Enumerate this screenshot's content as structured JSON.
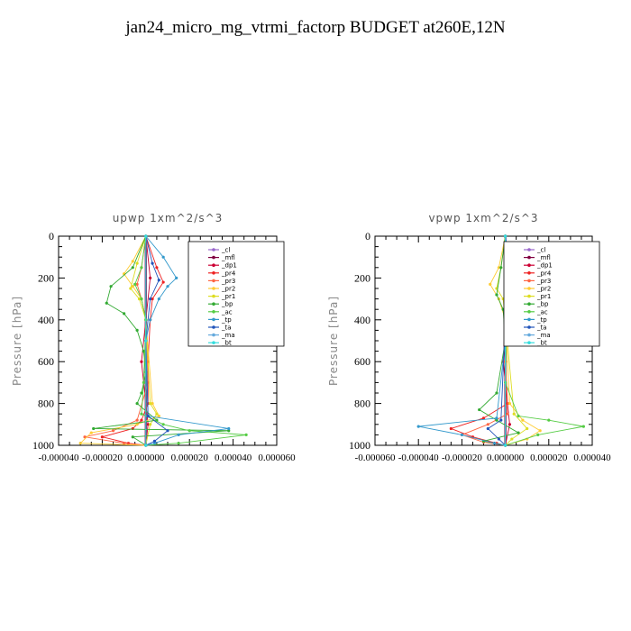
{
  "title": "jan24_micro_mg_vtrmi_factorp  BUDGET at260E,12N",
  "chart_data": [
    {
      "type": "line",
      "title": "upwp   1xm^2/s^3",
      "ylabel": "Pressure [hPa]",
      "xlabel": "",
      "xlim": [
        -4e-05,
        6e-05
      ],
      "ylim": [
        1000,
        0
      ],
      "xticks": [
        "-0.000040",
        "-0.000020",
        "0.000000",
        "0.000020",
        "0.000040",
        "0.000060"
      ],
      "yticks": [
        "0",
        "200",
        "400",
        "600",
        "800",
        "1000"
      ],
      "legend_position": "top-right",
      "series": [
        {
          "name": "_cl",
          "color": "#9966cc",
          "x": [
            0,
            0,
            0
          ],
          "y": [
            0,
            500,
            1000
          ]
        },
        {
          "name": "_mfl",
          "color": "#800040",
          "x": [
            0,
            0,
            0
          ],
          "y": [
            0,
            500,
            1000
          ]
        },
        {
          "name": "_dp1",
          "color": "#cc0033",
          "x": [
            0,
            2e-06,
            -2e-06,
            1e-06,
            0
          ],
          "y": [
            0,
            200,
            600,
            900,
            1000
          ]
        },
        {
          "name": "_pr4",
          "color": "#ee2222",
          "x": [
            0,
            5e-06,
            8e-06,
            3e-06,
            2e-06,
            1e-06,
            1e-06,
            -2e-06,
            -6e-06,
            -2e-05,
            -8e-06,
            0
          ],
          "y": [
            0,
            150,
            220,
            300,
            400,
            600,
            800,
            880,
            920,
            960,
            990,
            1000
          ]
        },
        {
          "name": "_pr3",
          "color": "#ff6644",
          "x": [
            0,
            -2e-06,
            -4e-06,
            -2e-06,
            0,
            1e-06,
            -4e-06,
            -1.5e-05,
            -2.8e-05,
            -1e-05,
            0
          ],
          "y": [
            0,
            150,
            230,
            300,
            400,
            700,
            880,
            930,
            960,
            990,
            1000
          ]
        },
        {
          "name": "_pr2",
          "color": "#ffcc33",
          "x": [
            0,
            -6e-06,
            -1e-05,
            -6e-06,
            -2e-06,
            0,
            3e-06,
            6e-06,
            -4e-06,
            -2.5e-05,
            -3e-05,
            0
          ],
          "y": [
            0,
            120,
            180,
            240,
            300,
            400,
            800,
            860,
            900,
            940,
            990,
            1000
          ]
        },
        {
          "name": "_pr1",
          "color": "#dddd22",
          "x": [
            0,
            -4e-06,
            -7e-06,
            -3e-06,
            0,
            2e-06,
            5e-06,
            2e-06,
            0
          ],
          "y": [
            0,
            130,
            250,
            300,
            400,
            800,
            850,
            900,
            1000
          ]
        },
        {
          "name": "_bp",
          "color": "#33aa33",
          "x": [
            0,
            -6e-06,
            -1.6e-05,
            -1.8e-05,
            -1e-05,
            -4e-06,
            -1e-06,
            0,
            -2e-06,
            -4e-06,
            5e-06,
            -2.4e-05,
            3.8e-05,
            -6e-06,
            0
          ],
          "y": [
            0,
            150,
            240,
            320,
            370,
            450,
            550,
            650,
            750,
            800,
            880,
            920,
            930,
            960,
            1000
          ]
        },
        {
          "name": "_ac",
          "color": "#55cc44",
          "x": [
            0,
            -2e-06,
            -5e-06,
            -2e-06,
            0,
            -1e-06,
            -2e-06,
            8e-06,
            2e-05,
            4.6e-05,
            1.5e-05,
            0
          ],
          "y": [
            0,
            150,
            230,
            300,
            400,
            700,
            850,
            900,
            930,
            950,
            990,
            1000
          ]
        },
        {
          "name": "_tp",
          "color": "#3399cc",
          "x": [
            0,
            8e-06,
            1.4e-05,
            1e-05,
            6e-06,
            2e-06,
            0,
            1e-06,
            3.8e-05,
            1.5e-05,
            4e-06,
            0
          ],
          "y": [
            0,
            100,
            200,
            240,
            300,
            400,
            500,
            860,
            920,
            950,
            990,
            1000
          ]
        },
        {
          "name": "_ta",
          "color": "#2255bb",
          "x": [
            0,
            3e-06,
            6e-06,
            2e-06,
            0,
            1e-06,
            1e-05,
            4e-06,
            0
          ],
          "y": [
            0,
            130,
            210,
            300,
            500,
            860,
            930,
            980,
            1000
          ]
        },
        {
          "name": "_ma",
          "color": "#66aadd",
          "x": [
            0,
            0,
            0
          ],
          "y": [
            0,
            500,
            1000
          ]
        },
        {
          "name": "_bt",
          "color": "#33dddd",
          "x": [
            0,
            0,
            0
          ],
          "y": [
            0,
            500,
            1000
          ]
        }
      ]
    },
    {
      "type": "line",
      "title": "vpwp   1xm^2/s^3",
      "ylabel": "Pressure [hPa]",
      "xlabel": "",
      "xlim": [
        -6e-05,
        4e-05
      ],
      "ylim": [
        1000,
        0
      ],
      "xticks": [
        "-0.000060",
        "-0.000040",
        "-0.000020",
        "0.000000",
        "0.000020",
        "0.000040"
      ],
      "yticks": [
        "0",
        "200",
        "400",
        "600",
        "800",
        "1000"
      ],
      "legend_position": "top-right",
      "series": [
        {
          "name": "_cl",
          "color": "#9966cc",
          "x": [
            0,
            0,
            0
          ],
          "y": [
            0,
            500,
            1000
          ]
        },
        {
          "name": "_mfl",
          "color": "#800040",
          "x": [
            0,
            0,
            0
          ],
          "y": [
            0,
            500,
            1000
          ]
        },
        {
          "name": "_dp1",
          "color": "#cc0033",
          "x": [
            0,
            1e-06,
            -1e-06,
            2e-06,
            0
          ],
          "y": [
            0,
            200,
            600,
            900,
            1000
          ]
        },
        {
          "name": "_pr4",
          "color": "#ee2222",
          "x": [
            0,
            1e-06,
            2e-06,
            1e-06,
            0,
            1e-06,
            -1e-05,
            -2.5e-05,
            -1.5e-05,
            -4e-06,
            0
          ],
          "y": [
            0,
            150,
            250,
            350,
            600,
            800,
            870,
            920,
            960,
            990,
            1000
          ]
        },
        {
          "name": "_pr3",
          "color": "#ff6644",
          "x": [
            0,
            1e-06,
            0,
            1e-06,
            -8e-06,
            -2e-05,
            -1e-05,
            0
          ],
          "y": [
            0,
            200,
            600,
            850,
            900,
            950,
            985,
            1000
          ]
        },
        {
          "name": "_pr2",
          "color": "#ffcc33",
          "x": [
            0,
            -3e-06,
            -7e-06,
            -3e-06,
            0,
            2e-06,
            8e-06,
            1.6e-05,
            1e-05,
            0
          ],
          "y": [
            0,
            150,
            230,
            300,
            400,
            800,
            880,
            930,
            970,
            1000
          ]
        },
        {
          "name": "_pr1",
          "color": "#dddd22",
          "x": [
            0,
            -2e-06,
            -4e-06,
            -1e-06,
            0,
            4e-06,
            1e-05,
            3e-06,
            0
          ],
          "y": [
            0,
            150,
            250,
            300,
            400,
            850,
            920,
            970,
            1000
          ]
        },
        {
          "name": "_bp",
          "color": "#33aa33",
          "x": [
            0,
            -2e-06,
            -4e-06,
            -1e-06,
            0,
            -4e-06,
            -1.2e-05,
            -4e-06,
            6e-06,
            -1e-05,
            0
          ],
          "y": [
            0,
            150,
            280,
            350,
            500,
            750,
            830,
            880,
            940,
            980,
            1000
          ]
        },
        {
          "name": "_ac",
          "color": "#55cc44",
          "x": [
            0,
            1e-06,
            0,
            6e-06,
            2e-05,
            3.6e-05,
            1.5e-05,
            0
          ],
          "y": [
            0,
            200,
            700,
            860,
            880,
            910,
            950,
            1000
          ]
        },
        {
          "name": "_tp",
          "color": "#3399cc",
          "x": [
            0,
            2e-06,
            4e-06,
            1e-06,
            0,
            -4e-06,
            -4e-05,
            -2e-05,
            -5e-06,
            0
          ],
          "y": [
            0,
            120,
            200,
            300,
            500,
            870,
            910,
            950,
            990,
            1000
          ]
        },
        {
          "name": "_ta",
          "color": "#2255bb",
          "x": [
            0,
            1e-06,
            2e-06,
            0,
            -2e-06,
            -8e-06,
            -3e-06,
            0
          ],
          "y": [
            0,
            130,
            210,
            400,
            880,
            920,
            970,
            1000
          ]
        },
        {
          "name": "_ma",
          "color": "#66aadd",
          "x": [
            0,
            0,
            0
          ],
          "y": [
            0,
            500,
            1000
          ]
        },
        {
          "name": "_bt",
          "color": "#33dddd",
          "x": [
            0,
            0,
            0
          ],
          "y": [
            0,
            500,
            1000
          ]
        }
      ]
    }
  ]
}
